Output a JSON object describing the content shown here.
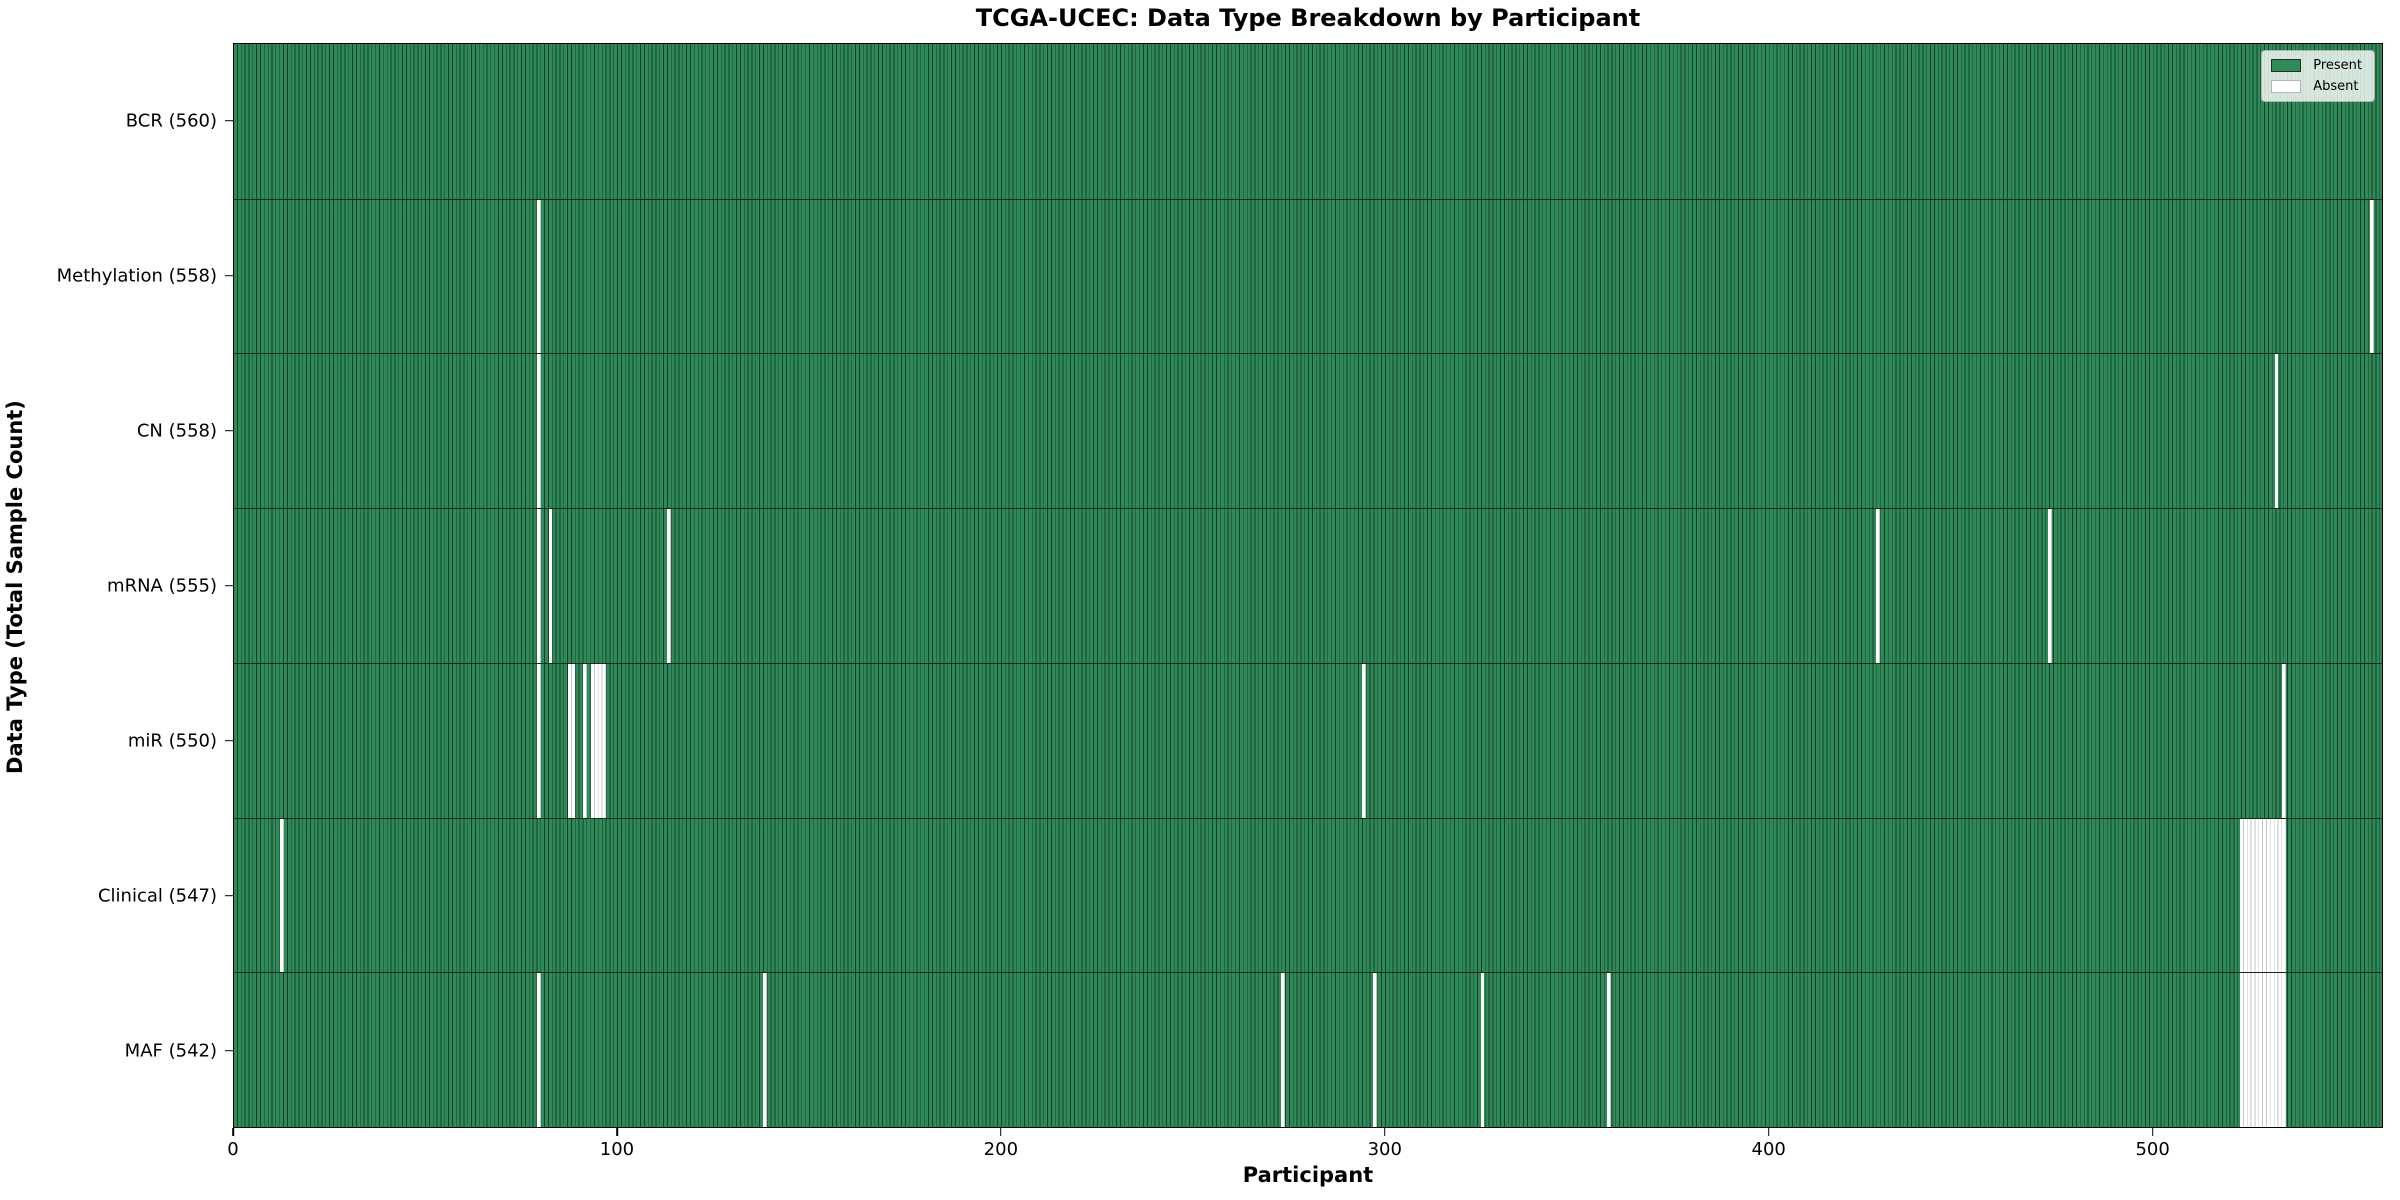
{
  "title": "TCGA-UCEC: Data Type Breakdown by Participant",
  "xlabel": "Participant",
  "ylabel": "Data Type (Total Sample Count)",
  "legend": {
    "present_label": "Present",
    "absent_label": "Absent"
  },
  "colors": {
    "present": "#2e8b57",
    "present_edge": "#173f28",
    "absent": "#ffffff",
    "absent_edge": "#c6c6c6",
    "text": "#000000"
  },
  "chart_data": {
    "type": "heatmap",
    "title": "TCGA-UCEC: Data Type Breakdown by Participant",
    "xlabel": "Participant",
    "ylabel": "Data Type (Total Sample Count)",
    "x_max": 560,
    "x_ticks": [
      0,
      100,
      200,
      300,
      400,
      500
    ],
    "legend_position": "upper right",
    "grid": false,
    "rows": [
      {
        "name": "BCR",
        "label": "BCR (560)",
        "total_samples": 560,
        "absent_ranges": []
      },
      {
        "name": "Methylation",
        "label": "Methylation (558)",
        "total_samples": 558,
        "absent_ranges": [
          [
            79,
            79
          ],
          [
            557,
            557
          ]
        ]
      },
      {
        "name": "CN",
        "label": "CN (558)",
        "total_samples": 558,
        "absent_ranges": [
          [
            79,
            79
          ],
          [
            532,
            532
          ]
        ]
      },
      {
        "name": "mRNA",
        "label": "mRNA (555)",
        "total_samples": 555,
        "absent_ranges": [
          [
            79,
            79
          ],
          [
            82,
            82
          ],
          [
            113,
            113
          ],
          [
            428,
            428
          ],
          [
            473,
            473
          ]
        ]
      },
      {
        "name": "miR",
        "label": "miR (550)",
        "total_samples": 550,
        "absent_ranges": [
          [
            79,
            79
          ],
          [
            87,
            88
          ],
          [
            91,
            91
          ],
          [
            93,
            96
          ],
          [
            294,
            294
          ],
          [
            534,
            534
          ]
        ]
      },
      {
        "name": "Clinical",
        "label": "Clinical (547)",
        "total_samples": 547,
        "absent_ranges": [
          [
            12,
            12
          ],
          [
            523,
            534
          ]
        ]
      },
      {
        "name": "MAF",
        "label": "MAF (542)",
        "total_samples": 542,
        "absent_ranges": [
          [
            79,
            79
          ],
          [
            138,
            138
          ],
          [
            273,
            273
          ],
          [
            297,
            297
          ],
          [
            325,
            325
          ],
          [
            358,
            358
          ],
          [
            523,
            534
          ]
        ]
      }
    ]
  }
}
